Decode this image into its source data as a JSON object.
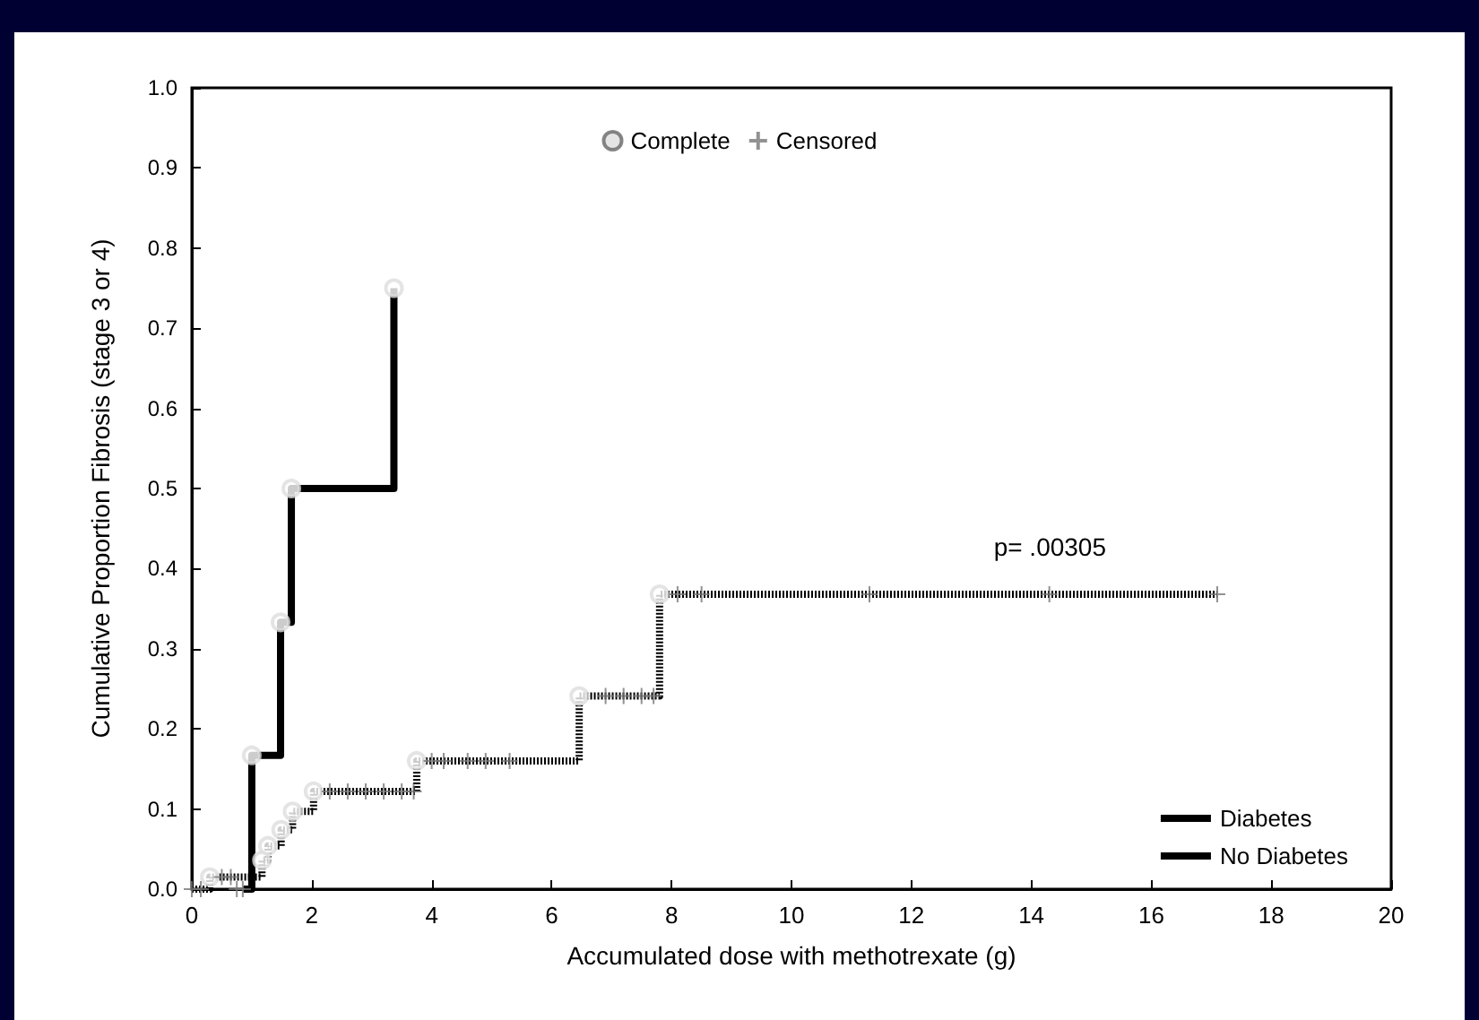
{
  "chart_data": {
    "type": "step",
    "xlabel": "Accumulated dose with methotrexate (g)",
    "ylabel": "Cumulative Proportion Fibrosis (stage 3 or 4)",
    "xlim": [
      0,
      20
    ],
    "xticks": [
      0,
      2,
      4,
      6,
      8,
      10,
      12,
      14,
      16,
      18,
      20
    ],
    "ylim": [
      0,
      1
    ],
    "yticks": [
      {
        "value": 0,
        "label": "0.0"
      },
      {
        "value": 0.1,
        "label": "0.1"
      },
      {
        "value": 0.2,
        "label": "0.2"
      },
      {
        "value": 0.3,
        "label": "0.3"
      },
      {
        "value": 0.4,
        "label": "0.4"
      },
      {
        "value": 0.5,
        "label": "0.5"
      },
      {
        "value": 0.6,
        "label": "0.6"
      },
      {
        "value": 0.7,
        "label": "0.7"
      },
      {
        "value": 0.8,
        "label": "0.8"
      },
      {
        "value": 0.9,
        "label": "0.9"
      },
      {
        "value": 1,
        "label": "1.0"
      }
    ],
    "legend": "bottom right",
    "grid": false,
    "series": [
      {
        "name": "Diabetes",
        "color": "#000000",
        "line_style": "solid",
        "marker": "none",
        "x": [
          0.86,
          1.0,
          1.48,
          1.66,
          3.37
        ],
        "values": [
          0,
          0.167,
          0.333,
          0.5,
          0.75
        ]
      },
      {
        "name": "No Diabetes",
        "color": "#000000",
        "line_style": "dotted",
        "marker": "none",
        "x": [
          0,
          0.3,
          1.17,
          1.27,
          1.49,
          1.68,
          2.03,
          3.75,
          6.46,
          7.8,
          17.1
        ],
        "values": [
          0,
          0.015,
          0.036,
          0.054,
          0.074,
          0.097,
          0.122,
          0.16,
          0.241,
          0.368,
          0.368
        ]
      },
      {
        "name": "Complete",
        "type": "scatter",
        "color": "#dddddd",
        "marker": "circle",
        "x": [
          1.0,
          1.48,
          1.66,
          3.37,
          0.3,
          1.17,
          1.27,
          1.49,
          1.68,
          2.03,
          3.75,
          6.46,
          7.8
        ],
        "values": [
          0.167,
          0.333,
          0.5,
          0.75,
          0.015,
          0.036,
          0.054,
          0.074,
          0.097,
          0.122,
          0.16,
          0.241,
          0.368
        ]
      },
      {
        "name": "Censored",
        "type": "scatter",
        "color": "#777777",
        "marker": "cross",
        "x": [
          0,
          0.15,
          0.75,
          0.85,
          0.5,
          0.65,
          2.3,
          2.6,
          2.9,
          3.2,
          3.5,
          3.7,
          4.0,
          4.2,
          4.6,
          4.9,
          5.3,
          6.9,
          7.2,
          7.5,
          7.7,
          8.1,
          8.5,
          11.3,
          14.3,
          17.1
        ],
        "values": [
          0,
          0,
          0,
          0,
          0.015,
          0.015,
          0.122,
          0.122,
          0.122,
          0.122,
          0.122,
          0.122,
          0.16,
          0.16,
          0.16,
          0.16,
          0.16,
          0.241,
          0.241,
          0.241,
          0.241,
          0.368,
          0.368,
          0.368,
          0.368,
          0.368
        ]
      }
    ],
    "annotations": [
      "p= .00305"
    ]
  }
}
